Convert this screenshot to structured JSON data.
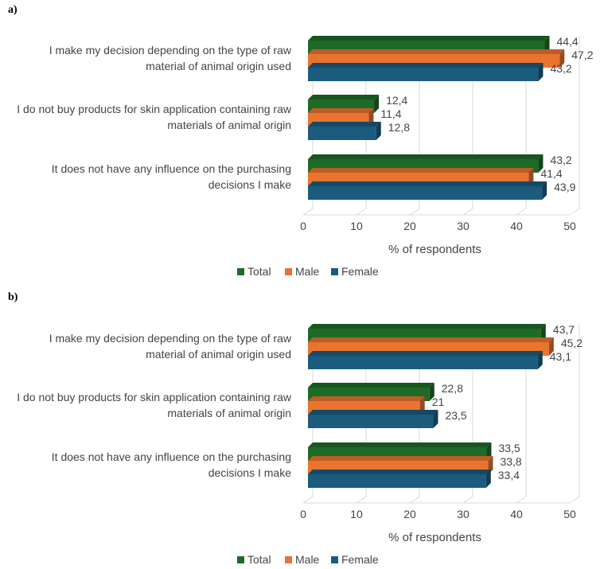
{
  "panel_labels": [
    "a)",
    "b)"
  ],
  "colors": {
    "total": "#1e6b27",
    "male": "#e9742f",
    "female": "#1a5b7e"
  },
  "chart_data": [
    {
      "type": "bar",
      "orientation": "horizontal",
      "panel": "a)",
      "categories": [
        [
          "I make my decision depending on the type of raw",
          "material of animal origin used"
        ],
        [
          "I do not buy products for skin application containing raw",
          "materials of animal origin"
        ],
        [
          "It does not have any influence on the purchasing",
          "decisions I make"
        ]
      ],
      "series": [
        {
          "name": "Total",
          "values": [
            44.4,
            12.4,
            43.2
          ],
          "labels": [
            "44,4",
            "12,4",
            "43,2"
          ]
        },
        {
          "name": "Male",
          "values": [
            47.2,
            11.4,
            41.4
          ],
          "labels": [
            "47,2",
            "11,4",
            "41,4"
          ]
        },
        {
          "name": "Female",
          "values": [
            43.2,
            12.8,
            43.9
          ],
          "labels": [
            "43,2",
            "12,8",
            "43,9"
          ]
        }
      ],
      "xlabel": "% of respondents",
      "xlim": [
        0,
        50
      ],
      "xticks": [
        0,
        10,
        20,
        30,
        40,
        50
      ],
      "grid": true,
      "legend": "bottom"
    },
    {
      "type": "bar",
      "orientation": "horizontal",
      "panel": "b)",
      "categories": [
        [
          "I make my decision depending on the type of raw",
          "material of animal origin used"
        ],
        [
          "I do not buy products for skin application containing raw",
          "materials of animal origin"
        ],
        [
          "It does not have any influence on the purchasing",
          "decisions I make"
        ]
      ],
      "series": [
        {
          "name": "Total",
          "values": [
            43.7,
            22.8,
            33.5
          ],
          "labels": [
            "43,7",
            "22,8",
            "33,5"
          ]
        },
        {
          "name": "Male",
          "values": [
            45.2,
            21,
            33.8
          ],
          "labels": [
            "45,2",
            "21",
            "33,8"
          ]
        },
        {
          "name": "Female",
          "values": [
            43.1,
            23.5,
            33.4
          ],
          "labels": [
            "43,1",
            "23,5",
            "33,4"
          ]
        }
      ],
      "xlabel": "% of respondents",
      "xlim": [
        0,
        50
      ],
      "xticks": [
        0,
        10,
        20,
        30,
        40,
        50
      ],
      "grid": true,
      "legend": "bottom"
    }
  ]
}
